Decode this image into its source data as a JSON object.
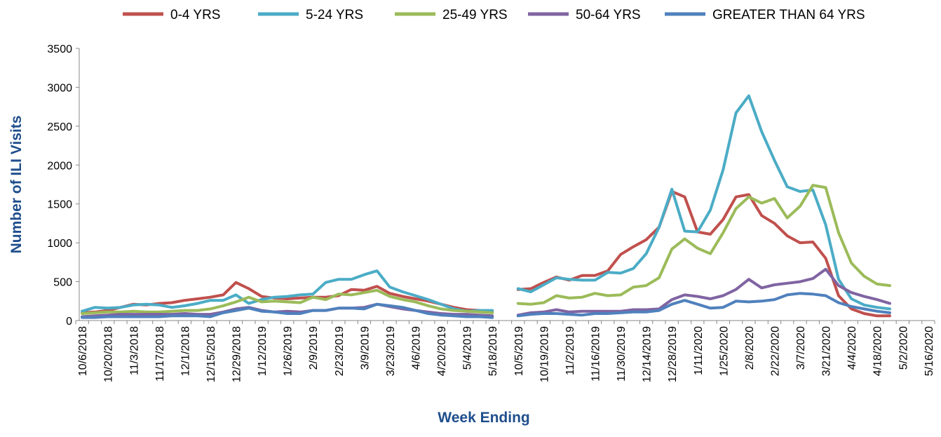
{
  "chart_data": {
    "type": "line",
    "x_label": "Week Ending",
    "y_label": "Number of ILI Visits",
    "categories": [
      "10/6/2018",
      null,
      "10/20/2018",
      null,
      "11/3/2018",
      null,
      "11/17/2018",
      null,
      "12/1/2018",
      null,
      "12/15/2018",
      null,
      "12/29/2018",
      null,
      "1/12/2019",
      null,
      "1/26/2019",
      null,
      "2/9/2019",
      null,
      "2/23/2019",
      null,
      "3/9/2019",
      null,
      "3/23/2019",
      null,
      "4/6/2019",
      null,
      "4/20/2019",
      null,
      "5/4/2019",
      null,
      "5/18/2019",
      null,
      "10/5/2019",
      null,
      "10/19/2019",
      null,
      "11/2/2019",
      null,
      "11/16/2019",
      null,
      "11/30/2019",
      null,
      "12/14/2019",
      null,
      "12/28/2019",
      null,
      "1/11/2020",
      null,
      "1/25/2020",
      null,
      "2/8/2020",
      null,
      "2/22/2020",
      null,
      "3/7/2020",
      null,
      "3/21/2020",
      null,
      "4/4/2020",
      null,
      "4/18/2020",
      null,
      "5/2/2020",
      null,
      "5/16/2020"
    ],
    "series": [
      {
        "name": "0-4 YRS",
        "color": "#c0504d",
        "values": [
          100,
          110,
          130,
          170,
          210,
          200,
          220,
          230,
          260,
          280,
          300,
          330,
          490,
          410,
          310,
          290,
          280,
          290,
          300,
          300,
          320,
          400,
          390,
          440,
          350,
          310,
          280,
          250,
          210,
          170,
          140,
          130,
          110,
          null,
          400,
          410,
          490,
          560,
          520,
          580,
          580,
          640,
          850,
          950,
          1040,
          1200,
          1660,
          1590,
          1140,
          1110,
          1300,
          1590,
          1620,
          1350,
          1250,
          1090,
          1000,
          1010,
          800,
          320,
          150,
          90,
          60,
          60,
          null,
          null,
          null
        ]
      },
      {
        "name": "5-24 YRS",
        "color": "#4bacc6",
        "values": [
          120,
          170,
          160,
          170,
          200,
          210,
          200,
          170,
          190,
          220,
          260,
          260,
          330,
          220,
          270,
          300,
          310,
          330,
          340,
          490,
          530,
          530,
          590,
          640,
          430,
          370,
          320,
          270,
          210,
          150,
          120,
          130,
          130,
          null,
          410,
          370,
          460,
          550,
          530,
          520,
          520,
          620,
          610,
          670,
          860,
          1200,
          1690,
          1150,
          1140,
          1420,
          1940,
          2670,
          2890,
          2430,
          2060,
          1720,
          1660,
          1680,
          1230,
          530,
          280,
          200,
          170,
          150,
          null,
          null,
          null
        ]
      },
      {
        "name": "25-49 YRS",
        "color": "#9bbb59",
        "values": [
          90,
          100,
          110,
          110,
          120,
          110,
          110,
          120,
          130,
          130,
          150,
          190,
          240,
          300,
          240,
          250,
          240,
          230,
          300,
          270,
          340,
          330,
          360,
          390,
          310,
          270,
          240,
          190,
          150,
          130,
          120,
          110,
          100,
          null,
          220,
          210,
          230,
          320,
          290,
          300,
          350,
          320,
          330,
          430,
          450,
          550,
          920,
          1050,
          930,
          860,
          1130,
          1440,
          1590,
          1510,
          1570,
          1320,
          1470,
          1740,
          1710,
          1130,
          740,
          570,
          470,
          450,
          null,
          null,
          null
        ]
      },
      {
        "name": "50-64 YRS",
        "color": "#8064a2",
        "values": [
          50,
          60,
          70,
          80,
          80,
          80,
          80,
          80,
          90,
          80,
          80,
          110,
          150,
          170,
          130,
          110,
          120,
          110,
          130,
          130,
          160,
          160,
          170,
          210,
          180,
          150,
          130,
          110,
          90,
          80,
          80,
          70,
          60,
          null,
          70,
          100,
          110,
          140,
          110,
          120,
          120,
          120,
          120,
          140,
          140,
          150,
          270,
          330,
          310,
          280,
          320,
          400,
          530,
          420,
          460,
          480,
          500,
          540,
          660,
          450,
          360,
          310,
          270,
          220,
          null,
          null,
          null
        ]
      },
      {
        "name": "GREATER THAN 64 YRS",
        "color": "#4f81bd",
        "values": [
          40,
          40,
          50,
          50,
          50,
          50,
          50,
          60,
          60,
          60,
          50,
          100,
          130,
          160,
          120,
          110,
          90,
          90,
          130,
          130,
          160,
          160,
          150,
          210,
          190,
          170,
          130,
          90,
          70,
          60,
          50,
          50,
          40,
          null,
          60,
          80,
          90,
          90,
          80,
          70,
          90,
          90,
          100,
          110,
          110,
          130,
          210,
          260,
          210,
          160,
          170,
          250,
          240,
          250,
          270,
          330,
          350,
          340,
          320,
          230,
          180,
          150,
          120,
          100,
          null,
          null,
          null
        ]
      }
    ],
    "ylim": [
      0,
      3500
    ],
    "yticks": [
      0,
      500,
      1000,
      1500,
      2000,
      2500,
      3000,
      3500
    ],
    "grid": false,
    "legend": "top"
  }
}
